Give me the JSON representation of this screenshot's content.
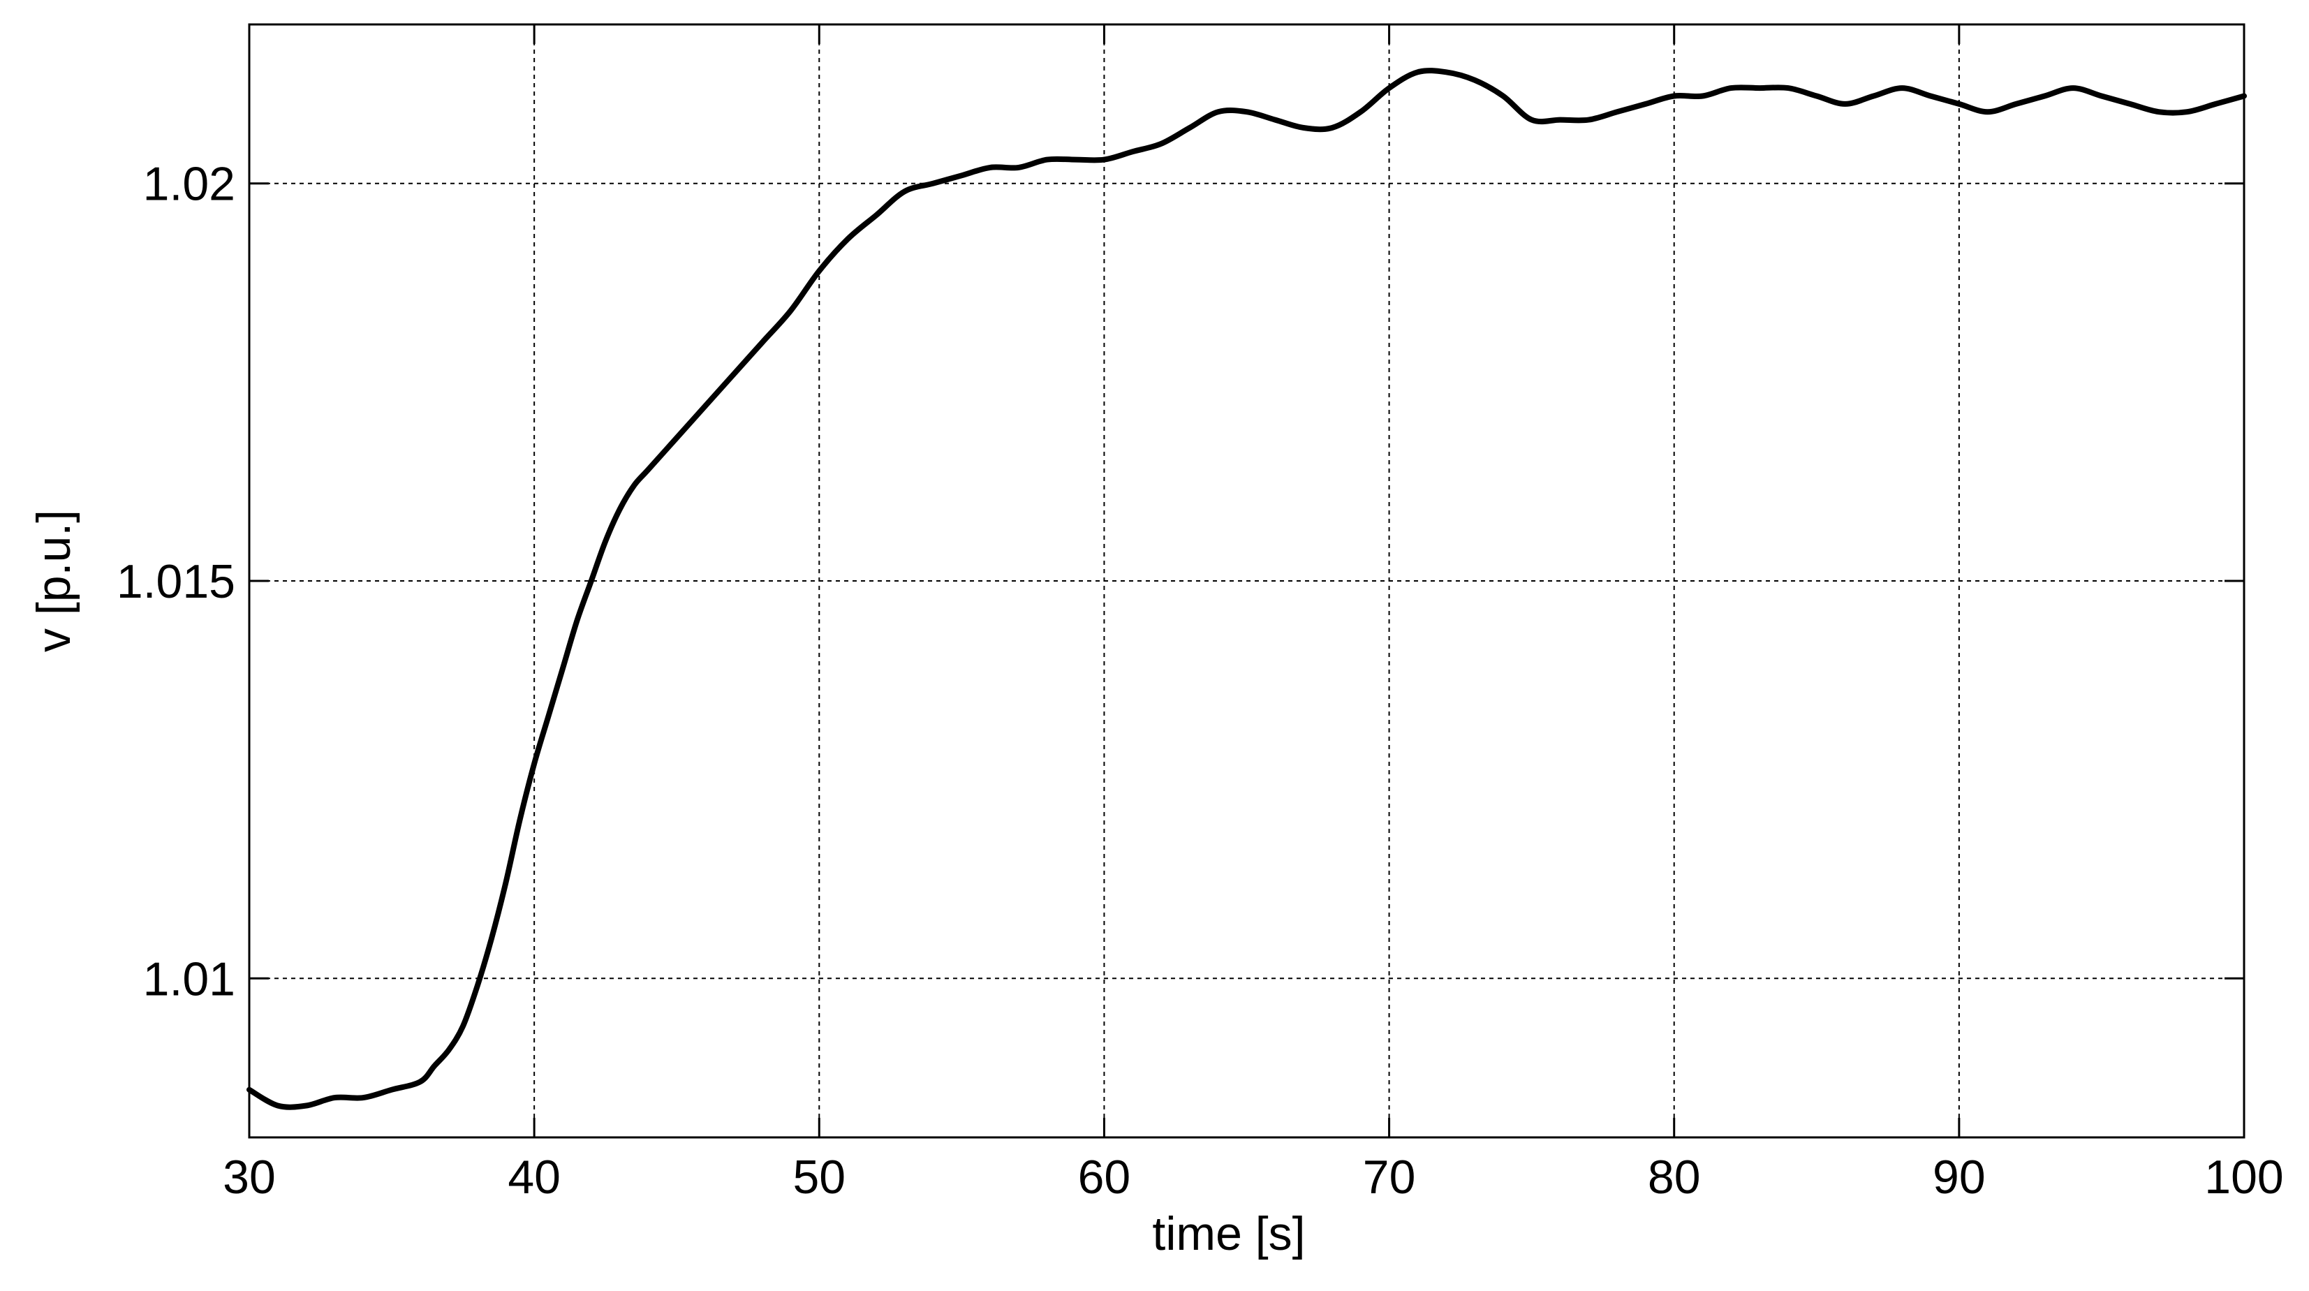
{
  "chart_data": {
    "type": "line",
    "title": "",
    "xlabel": "time [s]",
    "ylabel": "v [p.u.]",
    "xlim": [
      30,
      100
    ],
    "ylim": [
      1.008,
      1.022
    ],
    "xticks": [
      30,
      40,
      50,
      60,
      70,
      80,
      90,
      100
    ],
    "xtick_labels": [
      "30",
      "40",
      "50",
      "60",
      "70",
      "80",
      "90",
      "100"
    ],
    "yticks": [
      1.01,
      1.015,
      1.02
    ],
    "ytick_labels": [
      "1.01",
      "1.015",
      "1.02"
    ],
    "grid": true,
    "legend": "none",
    "colors": {
      "line": "#000000",
      "grid": "#000000",
      "axes": "#000000",
      "background": "#ffffff"
    },
    "series": [
      {
        "x": [
          30,
          31,
          32,
          33,
          34,
          35,
          36,
          36.5,
          37,
          37.5,
          38,
          38.5,
          39,
          39.5,
          40,
          40.5,
          41,
          41.5,
          42,
          42.5,
          43,
          43.5,
          44,
          45,
          46,
          47,
          48,
          49,
          50,
          51,
          52,
          53,
          54,
          55,
          56,
          57,
          58,
          59,
          60,
          61,
          62,
          63,
          64,
          65,
          66,
          67,
          68,
          69,
          70,
          71,
          72,
          73,
          74,
          75,
          76,
          77,
          78,
          79,
          80,
          81,
          82,
          83,
          84,
          85,
          86,
          87,
          88,
          89,
          90,
          91,
          92,
          93,
          94,
          95,
          96,
          97,
          98,
          99,
          100
        ],
        "y": [
          1.0086,
          1.0084,
          1.0084,
          1.0085,
          1.0085,
          1.0086,
          1.0087,
          1.0089,
          1.0091,
          1.0094,
          1.0099,
          1.0105,
          1.0112,
          1.012,
          1.0127,
          1.0133,
          1.0139,
          1.0145,
          1.015,
          1.0155,
          1.0159,
          1.0162,
          1.0164,
          1.0168,
          1.0172,
          1.0176,
          1.018,
          1.0184,
          1.0189,
          1.0193,
          1.0196,
          1.0199,
          1.02,
          1.0201,
          1.0202,
          1.0202,
          1.0203,
          1.0203,
          1.0203,
          1.0204,
          1.0205,
          1.0207,
          1.0209,
          1.0209,
          1.0208,
          1.0207,
          1.0207,
          1.0209,
          1.0212,
          1.0214,
          1.0214,
          1.0213,
          1.0211,
          1.0208,
          1.0208,
          1.0208,
          1.0209,
          1.021,
          1.0211,
          1.0211,
          1.0212,
          1.0212,
          1.0212,
          1.0211,
          1.021,
          1.0211,
          1.0212,
          1.0211,
          1.021,
          1.0209,
          1.021,
          1.0211,
          1.0212,
          1.0211,
          1.021,
          1.0209,
          1.0209,
          1.021,
          1.0211
        ]
      }
    ]
  }
}
